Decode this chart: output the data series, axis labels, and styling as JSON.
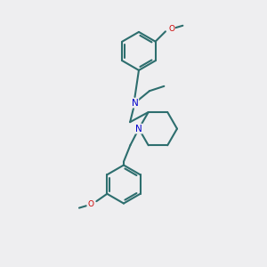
{
  "background_color": "#eeeef0",
  "bond_color": "#2d6e6e",
  "N_color": "#0000cc",
  "O_color": "#cc0000",
  "line_width": 1.5,
  "figsize": [
    3.0,
    3.0
  ],
  "dpi": 100,
  "xlim": [
    0,
    10
  ],
  "ylim": [
    0,
    10
  ]
}
